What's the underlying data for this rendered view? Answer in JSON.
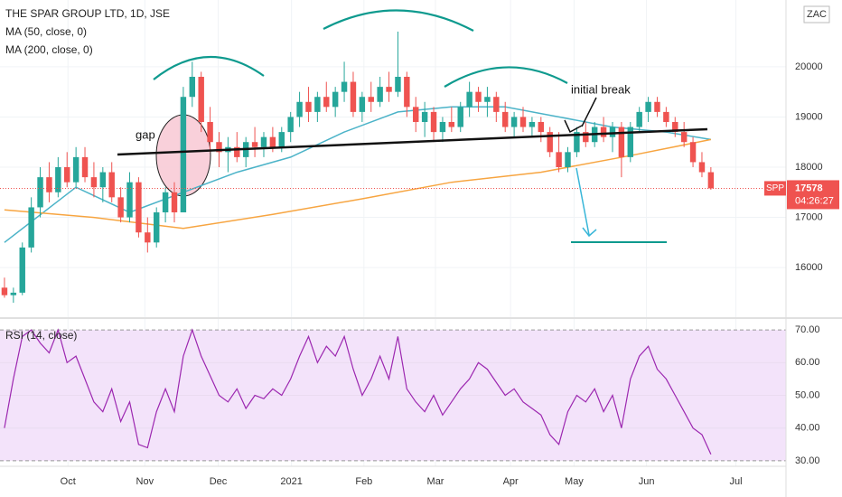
{
  "chart_data": [
    {
      "type": "candlestick",
      "title": "THE SPAR GROUP LTD, 1D, JSE",
      "symbol": "SPP",
      "currency": "ZAC",
      "countdown": "04:26:27",
      "last_price": 17578,
      "up_color": "#26a69a",
      "down_color": "#ef5350",
      "ohlc": [
        [
          15600,
          15800,
          15400,
          15450
        ],
        [
          15450,
          15600,
          15300,
          15500
        ],
        [
          15500,
          16500,
          15450,
          16400
        ],
        [
          16400,
          17400,
          16300,
          17200
        ],
        [
          17200,
          18000,
          17000,
          17800
        ],
        [
          17800,
          18100,
          17300,
          17500
        ],
        [
          17500,
          18200,
          17400,
          18000
        ],
        [
          18000,
          18300,
          17600,
          17700
        ],
        [
          17700,
          18400,
          17600,
          18200
        ],
        [
          18200,
          18400,
          17700,
          17800
        ],
        [
          17800,
          18100,
          17400,
          17600
        ],
        [
          17600,
          18000,
          17300,
          17900
        ],
        [
          17900,
          18100,
          17300,
          17400
        ],
        [
          17400,
          17600,
          16900,
          17000
        ],
        [
          17000,
          17900,
          16900,
          17700
        ],
        [
          17700,
          17800,
          16600,
          16700
        ],
        [
          16700,
          17000,
          16300,
          16500
        ],
        [
          16500,
          17200,
          16400,
          17100
        ],
        [
          17100,
          17600,
          16900,
          17500
        ],
        [
          17500,
          17700,
          16900,
          17100
        ],
        [
          17100,
          19600,
          17100,
          19400
        ],
        [
          19400,
          20100,
          19200,
          19800
        ],
        [
          19800,
          19900,
          18700,
          18900
        ],
        [
          18900,
          19200,
          18300,
          18500
        ],
        [
          18500,
          18700,
          18000,
          18300
        ],
        [
          18300,
          18600,
          17900,
          18400
        ],
        [
          18400,
          18700,
          18100,
          18200
        ],
        [
          18200,
          18600,
          18000,
          18500
        ],
        [
          18500,
          18800,
          18200,
          18400
        ],
        [
          18400,
          18700,
          18200,
          18600
        ],
        [
          18600,
          18800,
          18300,
          18400
        ],
        [
          18400,
          18800,
          18300,
          18700
        ],
        [
          18700,
          19100,
          18500,
          19000
        ],
        [
          19000,
          19500,
          18800,
          19300
        ],
        [
          19300,
          19600,
          18900,
          19100
        ],
        [
          19100,
          19500,
          18900,
          19400
        ],
        [
          19400,
          19700,
          19100,
          19200
        ],
        [
          19200,
          19600,
          19000,
          19500
        ],
        [
          19500,
          20100,
          19300,
          19700
        ],
        [
          19700,
          19900,
          19000,
          19100
        ],
        [
          19100,
          19500,
          18900,
          19400
        ],
        [
          19400,
          19700,
          19100,
          19300
        ],
        [
          19300,
          19800,
          19200,
          19600
        ],
        [
          19600,
          19900,
          19300,
          19500
        ],
        [
          19500,
          20700,
          19400,
          19800
        ],
        [
          19800,
          19900,
          19000,
          19200
        ],
        [
          19200,
          19400,
          18700,
          18900
        ],
        [
          18900,
          19300,
          18600,
          19100
        ],
        [
          19100,
          19200,
          18500,
          18700
        ],
        [
          18700,
          19000,
          18500,
          18900
        ],
        [
          18900,
          19200,
          18700,
          18800
        ],
        [
          18800,
          19300,
          18700,
          19200
        ],
        [
          19200,
          19700,
          19000,
          19500
        ],
        [
          19500,
          19600,
          19100,
          19300
        ],
        [
          19300,
          19600,
          19000,
          19400
        ],
        [
          19400,
          19500,
          18900,
          19100
        ],
        [
          19100,
          19300,
          18700,
          18800
        ],
        [
          18800,
          19100,
          18600,
          19000
        ],
        [
          19000,
          19200,
          18700,
          18800
        ],
        [
          18800,
          19000,
          18600,
          18900
        ],
        [
          18900,
          19000,
          18500,
          18700
        ],
        [
          18700,
          18800,
          18200,
          18300
        ],
        [
          18300,
          18700,
          17900,
          18000
        ],
        [
          18000,
          18400,
          17900,
          18300
        ],
        [
          18300,
          18800,
          18200,
          18700
        ],
        [
          18700,
          18900,
          18400,
          18500
        ],
        [
          18500,
          18900,
          18400,
          18800
        ],
        [
          18800,
          19000,
          18500,
          18600
        ],
        [
          18600,
          18900,
          18300,
          18800
        ],
        [
          18800,
          18900,
          17800,
          18200
        ],
        [
          18200,
          18900,
          18100,
          18800
        ],
        [
          18800,
          19200,
          18700,
          19100
        ],
        [
          19100,
          19400,
          18900,
          19300
        ],
        [
          19300,
          19400,
          19000,
          19100
        ],
        [
          19100,
          19200,
          18800,
          18900
        ],
        [
          18900,
          19000,
          18600,
          18700
        ],
        [
          18700,
          18900,
          18400,
          18500
        ],
        [
          18500,
          18600,
          18000,
          18100
        ],
        [
          18100,
          18300,
          17800,
          17900
        ],
        [
          17900,
          18000,
          17550,
          17578
        ]
      ],
      "series": [
        {
          "name": "MA (50, close, 0)",
          "color": "#4bb3c8",
          "x": [
            0,
            8,
            14,
            20,
            26,
            32,
            38,
            44,
            50,
            56,
            62,
            68,
            74,
            79
          ],
          "values": [
            16500,
            17600,
            17100,
            17500,
            17900,
            18200,
            18700,
            19100,
            19200,
            19200,
            19000,
            18800,
            18700,
            18550
          ]
        },
        {
          "name": "MA (200, close, 0)",
          "color": "#f7a541",
          "x": [
            0,
            10,
            20,
            30,
            40,
            50,
            60,
            70,
            79
          ],
          "values": [
            17150,
            17000,
            16780,
            17060,
            17370,
            17700,
            17900,
            18230,
            18550
          ]
        }
      ],
      "annotations": [
        "gap",
        "initial break"
      ],
      "xlim": [
        -0.5,
        87.4
      ],
      "xticks": [
        {
          "value": 7.1,
          "label": "Oct"
        },
        {
          "value": 15.7,
          "label": "Nov"
        },
        {
          "value": 23.9,
          "label": "Dec"
        },
        {
          "value": 32.1,
          "label": "2021"
        },
        {
          "value": 40.2,
          "label": "Feb"
        },
        {
          "value": 48.2,
          "label": "Mar"
        },
        {
          "value": 56.6,
          "label": "Apr"
        },
        {
          "value": 63.7,
          "label": "May"
        },
        {
          "value": 71.8,
          "label": "Jun"
        },
        {
          "value": 81.8,
          "label": "Jul"
        }
      ],
      "ylim": [
        15030,
        21330
      ],
      "yticks": [
        16000,
        17000,
        18000,
        19000,
        20000
      ]
    },
    {
      "type": "line",
      "series": [
        {
          "name": "RSI (14, close)",
          "color": "#9c27b0",
          "values": [
            40,
            55,
            68,
            70,
            66,
            63,
            70,
            60,
            62,
            55,
            48,
            45,
            52,
            42,
            48,
            35,
            34,
            45,
            52,
            45,
            62,
            70,
            62,
            56,
            50,
            48,
            52,
            46,
            50,
            49,
            52,
            50,
            55,
            62,
            68,
            60,
            65,
            62,
            68,
            58,
            50,
            55,
            62,
            55,
            68,
            52,
            48,
            45,
            50,
            44,
            48,
            52,
            55,
            60,
            58,
            54,
            50,
            52,
            48,
            46,
            44,
            38,
            35,
            45,
            50,
            48,
            52,
            45,
            50,
            40,
            55,
            62,
            65,
            58,
            55,
            50,
            45,
            40,
            38,
            32
          ]
        }
      ],
      "band_color": "#f3e3fa",
      "xlim": [
        -0.5,
        87.4
      ],
      "ylim": [
        28.6,
        72.8
      ],
      "yticks": [
        {
          "value": 30,
          "label": "30.00"
        },
        {
          "value": 40,
          "label": "40.00"
        },
        {
          "value": 50,
          "label": "50.00"
        },
        {
          "value": 60,
          "label": "60.00"
        },
        {
          "value": 70,
          "label": "70.00"
        }
      ]
    }
  ]
}
